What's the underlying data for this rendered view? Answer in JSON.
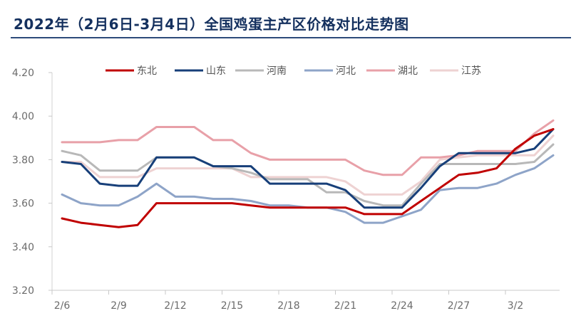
{
  "chart_data": {
    "type": "line",
    "title": "2022年（2月6日-3月4日）全国鸡蛋主产区价格对比走势图",
    "xlabel": "",
    "ylabel": "",
    "ylim": [
      3.2,
      4.2
    ],
    "yticks": [
      "3.20",
      "3.40",
      "3.60",
      "3.80",
      "4.00",
      "4.20"
    ],
    "ytick_values": [
      3.2,
      3.4,
      3.6,
      3.8,
      4.0,
      4.2
    ],
    "x": [
      "2/6",
      "2/7",
      "2/8",
      "2/9",
      "2/10",
      "2/11",
      "2/12",
      "2/13",
      "2/14",
      "2/15",
      "2/16",
      "2/17",
      "2/18",
      "2/19",
      "2/20",
      "2/21",
      "2/22",
      "2/23",
      "2/24",
      "2/25",
      "2/26",
      "2/27",
      "2/28",
      "3/1",
      "3/2",
      "3/3",
      "3/4"
    ],
    "xtick_labels": [
      "2/6",
      "2/9",
      "2/12",
      "2/15",
      "2/18",
      "2/21",
      "2/24",
      "2/27",
      "3/2"
    ],
    "grid": false,
    "legend_position": "top",
    "series": [
      {
        "name": "东北",
        "color": "#c00000",
        "values": [
          3.53,
          3.51,
          3.5,
          3.49,
          3.5,
          3.6,
          3.6,
          3.6,
          3.6,
          3.6,
          3.59,
          3.58,
          3.58,
          3.58,
          3.58,
          3.58,
          3.55,
          3.55,
          3.55,
          3.61,
          3.67,
          3.73,
          3.74,
          3.76,
          3.85,
          3.91,
          3.94
        ]
      },
      {
        "name": "山东",
        "color": "#173f79",
        "values": [
          3.79,
          3.78,
          3.69,
          3.68,
          3.68,
          3.81,
          3.81,
          3.81,
          3.77,
          3.77,
          3.77,
          3.69,
          3.69,
          3.69,
          3.69,
          3.66,
          3.58,
          3.58,
          3.58,
          3.67,
          3.77,
          3.83,
          3.83,
          3.83,
          3.83,
          3.85,
          3.94
        ]
      },
      {
        "name": "河南",
        "color": "#b8b8b8",
        "values": [
          3.84,
          3.82,
          3.75,
          3.75,
          3.75,
          3.81,
          3.81,
          3.81,
          3.77,
          3.76,
          3.74,
          3.71,
          3.71,
          3.71,
          3.65,
          3.65,
          3.61,
          3.59,
          3.59,
          3.69,
          3.78,
          3.78,
          3.78,
          3.78,
          3.78,
          3.79,
          3.87
        ]
      },
      {
        "name": "河北",
        "color": "#8ea4c8",
        "values": [
          3.64,
          3.6,
          3.59,
          3.59,
          3.63,
          3.69,
          3.63,
          3.63,
          3.62,
          3.62,
          3.61,
          3.59,
          3.59,
          3.58,
          3.58,
          3.56,
          3.51,
          3.51,
          3.54,
          3.57,
          3.66,
          3.67,
          3.67,
          3.69,
          3.73,
          3.76,
          3.82
        ]
      },
      {
        "name": "湖北",
        "color": "#e8a0a8",
        "values": [
          3.88,
          3.88,
          3.88,
          3.89,
          3.89,
          3.95,
          3.95,
          3.95,
          3.89,
          3.89,
          3.83,
          3.8,
          3.8,
          3.8,
          3.8,
          3.8,
          3.75,
          3.73,
          3.73,
          3.81,
          3.81,
          3.82,
          3.84,
          3.84,
          3.84,
          3.92,
          3.98
        ]
      },
      {
        "name": "江苏",
        "color": "#eed2d2",
        "values": [
          3.79,
          3.79,
          3.72,
          3.72,
          3.72,
          3.76,
          3.76,
          3.76,
          3.76,
          3.76,
          3.72,
          3.72,
          3.72,
          3.72,
          3.72,
          3.7,
          3.64,
          3.64,
          3.64,
          3.7,
          3.8,
          3.81,
          3.82,
          3.82,
          3.82,
          3.82,
          3.91
        ]
      }
    ]
  }
}
